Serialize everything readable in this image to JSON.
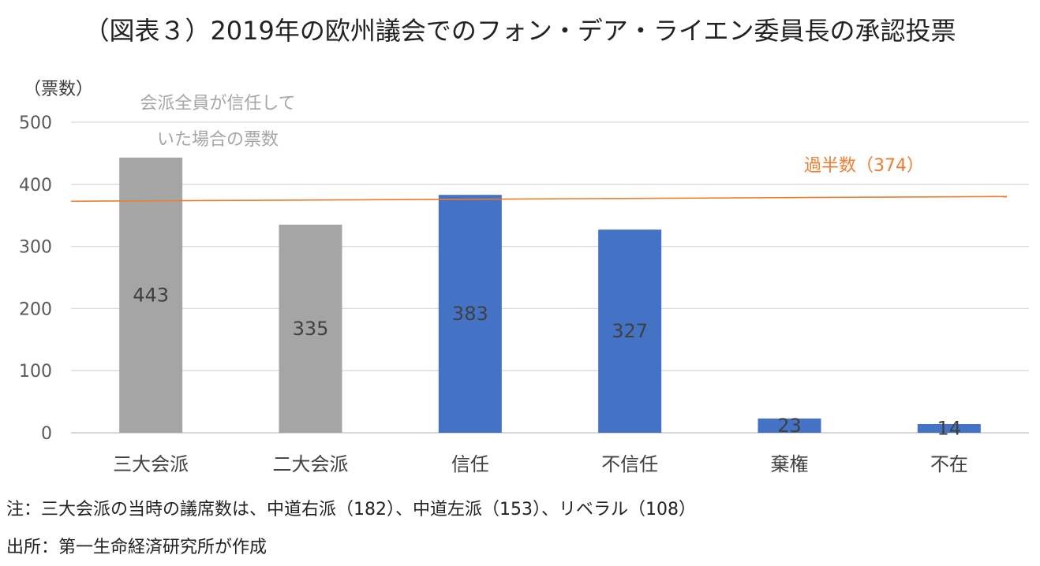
{
  "title": "（図表３）2019年の欧州議会でのフォン・デア・ライエン委員長の承認投票",
  "chart_data": {
    "type": "bar",
    "y_unit_label": "（票数）",
    "ylim": [
      0,
      500
    ],
    "yticks": [
      0,
      100,
      200,
      300,
      400,
      500
    ],
    "grid": true,
    "categories": [
      "三大会派",
      "二大会派",
      "信任",
      "不信任",
      "棄権",
      "不在"
    ],
    "values": [
      443,
      335,
      383,
      327,
      23,
      14
    ],
    "colors": [
      "#a5a5a5",
      "#a5a5a5",
      "#4472c4",
      "#4472c4",
      "#4472c4",
      "#4472c4"
    ],
    "line_color": "#ed7d31",
    "grid_color": "#d9d9d9",
    "annotation_line1": "会派全員が信任して",
    "annotation_line2": "いた場合の票数",
    "majority_label": "過半数（374）",
    "majority_value": 374
  },
  "notes": {
    "note": "注：三大会派の当時の議席数は、中道右派（182）、中道左派（153）、リベラル（108）",
    "source": "出所：第一生命経済研究所が作成"
  }
}
